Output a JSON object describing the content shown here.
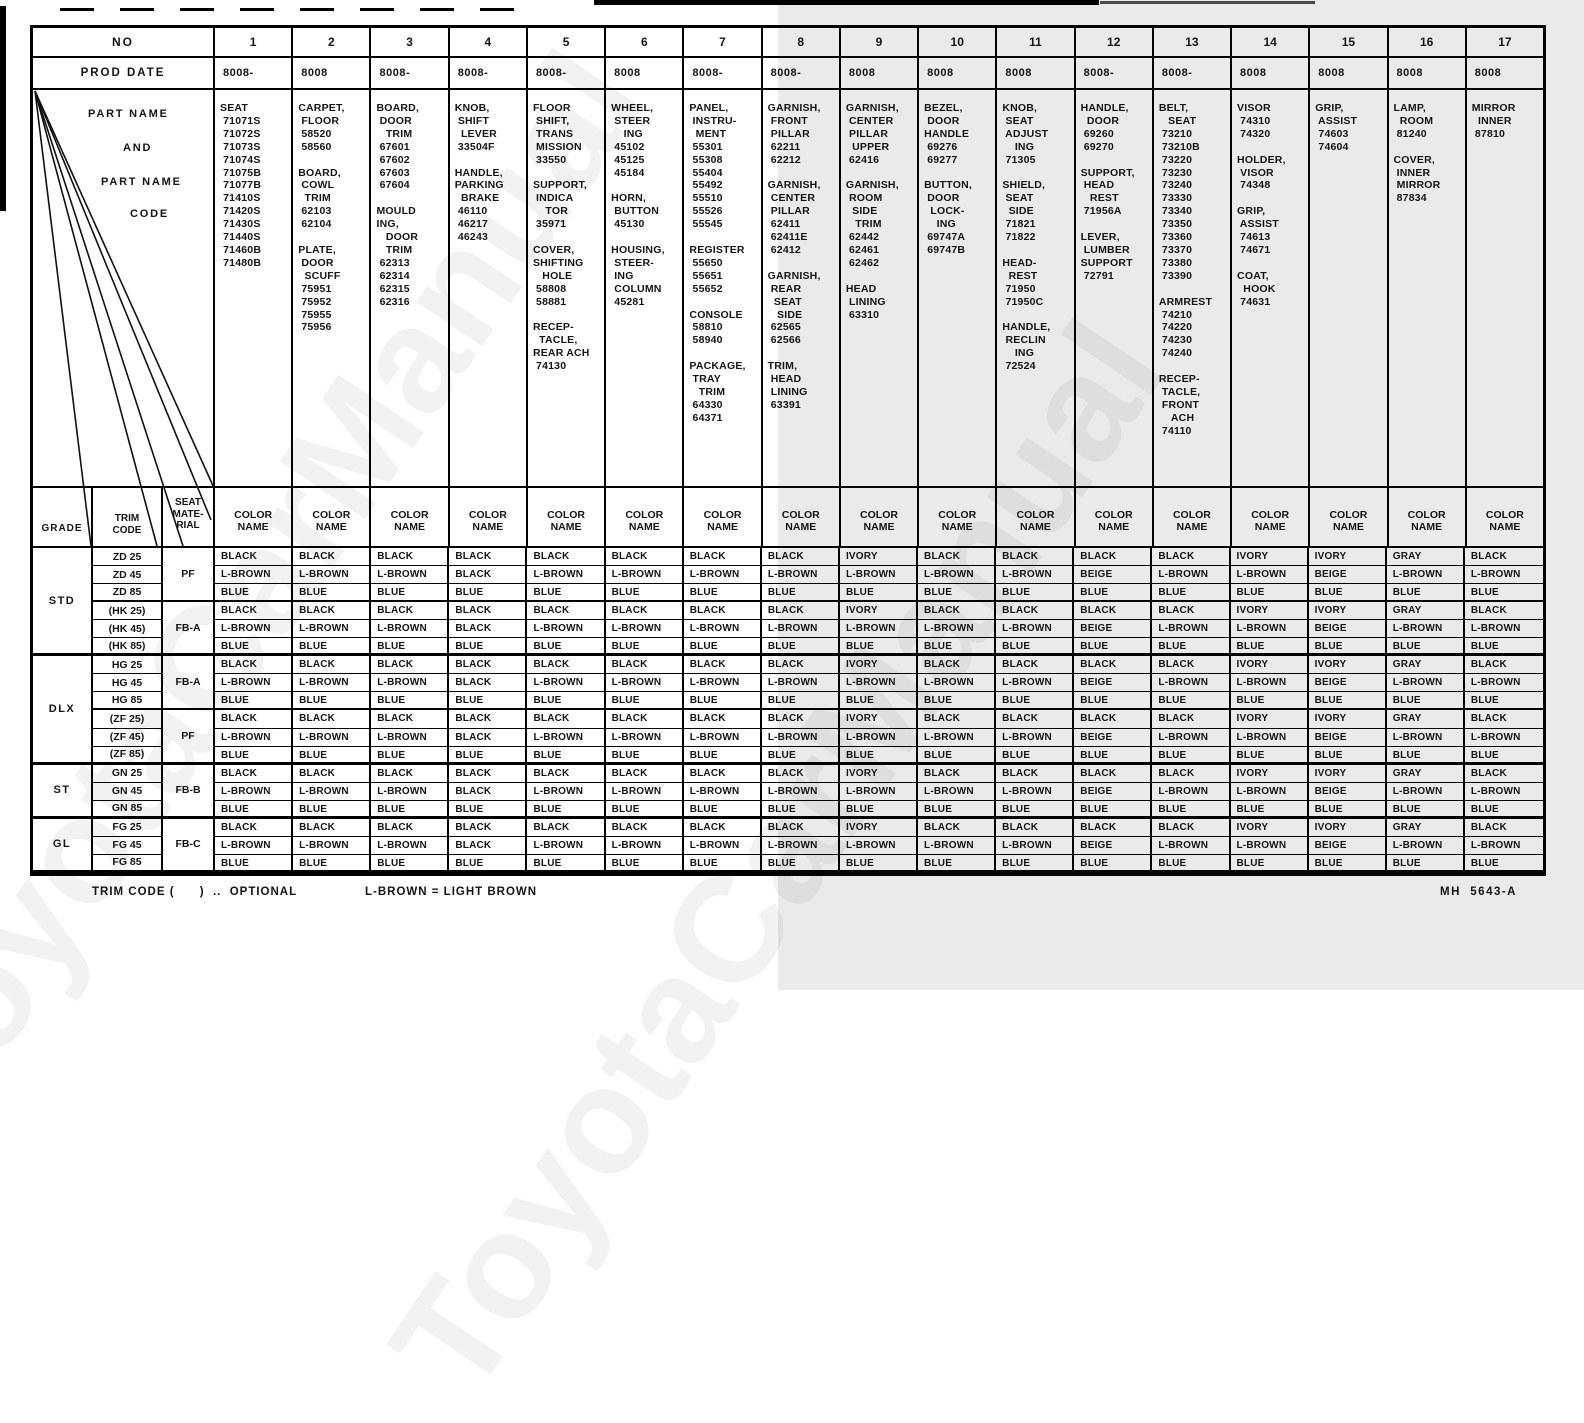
{
  "page": {
    "watermark": "ToyotaCarManual"
  },
  "header": {
    "no_label": "NO",
    "prod_date_label": "PROD DATE",
    "part_name_line1": "PART NAME",
    "part_name_line2": "AND",
    "part_name_line3": "PART NAME",
    "part_name_line4": "CODE",
    "grade_label": "GRADE",
    "trim_code_label": "TRIM\nCODE",
    "seat_material_label": "SEAT\nMATE-\nRIAL",
    "color_name_label": "COLOR\nNAME"
  },
  "columns": [
    {
      "no": "1",
      "prod_date": "8008-",
      "parts": "SEAT\n 71071S\n 71072S\n 71073S\n 71074S\n 71075B\n 71077B\n 71410S\n 71420S\n 71430S\n 71440S\n 71460B\n 71480B"
    },
    {
      "no": "2",
      "prod_date": "8008",
      "parts": "CARPET,\n FLOOR\n 58520\n 58560\n\nBOARD,\n COWL\n  TRIM\n 62103\n 62104\n\nPLATE,\n DOOR\n  SCUFF\n 75951\n 75952\n 75955\n 75956"
    },
    {
      "no": "3",
      "prod_date": "8008-",
      "parts": "BOARD,\n DOOR\n   TRIM\n 67601\n 67602\n 67603\n 67604\n\nMOULD\nING,\n   DOOR\n   TRIM\n 62313\n 62314\n 62315\n 62316"
    },
    {
      "no": "4",
      "prod_date": "8008-",
      "parts": "KNOB,\n SHIFT\n  LEVER\n 33504F\n\nHANDLE,\nPARKING\n  BRAKE\n 46110\n 46217\n 46243"
    },
    {
      "no": "5",
      "prod_date": "8008-",
      "parts": "FLOOR\n SHIFT,\n TRANS\n MISSION\n 33550\n\nSUPPORT,\n INDICA\n    TOR\n 35971\n\nCOVER,\nSHIFTING\n   HOLE\n 58808\n 58881\n\nRECEP-\n  TACLE,\nREAR ACH\n 74130"
    },
    {
      "no": "6",
      "prod_date": "8008",
      "parts": "WHEEL,\n STEER\n    ING\n 45102\n 45125\n 45184\n\nHORN,\n BUTTON\n 45130\n\nHOUSING,\n STEER-\n ING\n COLUMN\n 45281"
    },
    {
      "no": "7",
      "prod_date": "8008-",
      "parts": "PANEL,\n INSTRU-\n  MENT\n 55301\n 55308\n 55404\n 55492\n 55510\n 55526\n 55545\n\nREGISTER\n 55650\n 55651\n 55652\n\nCONSOLE\n 58810\n 58940\n\nPACKAGE,\n TRAY\n   TRIM\n 64330\n 64371"
    },
    {
      "no": "8",
      "prod_date": "8008-",
      "parts": "GARNISH,\n FRONT\n PILLAR\n 62211\n 62212\n\nGARNISH,\n CENTER\n PILLAR\n 62411\n 62411E\n 62412\n\nGARNISH,\n REAR\n  SEAT\n   SIDE\n 62565\n 62566\n\nTRIM,\n HEAD\n LINING\n 63391"
    },
    {
      "no": "9",
      "prod_date": "8008",
      "parts": "GARNISH,\n CENTER\n PILLAR\n  UPPER\n 62416\n\nGARNISH,\n ROOM\n  SIDE\n   TRIM\n 62442\n 62461\n 62462\n\nHEAD\n LINING\n 63310"
    },
    {
      "no": "10",
      "prod_date": "8008",
      "parts": "BEZEL,\n DOOR\nHANDLE\n 69276\n 69277\n\nBUTTON,\n DOOR\n  LOCK-\n    ING\n 69747A\n 69747B"
    },
    {
      "no": "11",
      "prod_date": "8008",
      "parts": "KNOB,\n SEAT\n ADJUST\n    ING\n 71305\n\nSHIELD,\n SEAT\n  SIDE\n 71821\n 71822\n\nHEAD-\n  REST\n 71950\n 71950C\n\nHANDLE,\n RECLIN\n    ING\n 72524"
    },
    {
      "no": "12",
      "prod_date": "8008-",
      "parts": "HANDLE,\n  DOOR\n 69260\n 69270\n\nSUPPORT,\n HEAD\n   REST\n 71956A\n\nLEVER,\n LUMBER\nSUPPORT\n 72791"
    },
    {
      "no": "13",
      "prod_date": "8008-",
      "parts": "BELT,\n   SEAT\n 73210\n 73210B\n 73220\n 73230\n 73240\n 73330\n 73340\n 73350\n 73360\n 73370\n 73380\n 73390\n\nARMREST\n 74210\n 74220\n 74230\n 74240\n\nRECEP-\n TACLE,\n FRONT\n    ACH\n 74110"
    },
    {
      "no": "14",
      "prod_date": "8008",
      "parts": "VISOR\n 74310\n 74320\n\nHOLDER,\n VISOR\n 74348\n\nGRIP,\n ASSIST\n 74613\n 74671\n\nCOAT,\n  HOOK\n 74631"
    },
    {
      "no": "15",
      "prod_date": "8008",
      "parts": "GRIP,\n ASSIST\n 74603\n 74604"
    },
    {
      "no": "16",
      "prod_date": "8008",
      "parts": "LAMP,\n  ROOM\n 81240\n\nCOVER,\n INNER\n MIRROR\n 87834"
    },
    {
      "no": "17",
      "prod_date": "8008",
      "parts": "MIRROR\n  INNER\n 87810"
    }
  ],
  "grade_groups": [
    {
      "grade": "STD",
      "rows": 6
    },
    {
      "grade": "DLX",
      "rows": 6
    },
    {
      "grade": "ST",
      "rows": 3
    },
    {
      "grade": "GL",
      "rows": 3
    }
  ],
  "seat_materials": [
    {
      "label": "PF",
      "rows": 3
    },
    {
      "label": "FB-A",
      "rows": 3
    },
    {
      "label": "FB-A",
      "rows": 3
    },
    {
      "label": "PF",
      "rows": 3
    },
    {
      "label": "FB-B",
      "rows": 3
    },
    {
      "label": "FB-C",
      "rows": 3
    }
  ],
  "rows": [
    {
      "trim": "ZD 25",
      "colors": [
        "BLACK",
        "BLACK",
        "BLACK",
        "BLACK",
        "BLACK",
        "BLACK",
        "BLACK",
        "BLACK",
        "IVORY",
        "BLACK",
        "BLACK",
        "BLACK",
        "BLACK",
        "IVORY",
        "IVORY",
        "GRAY",
        "BLACK"
      ]
    },
    {
      "trim": "ZD 45",
      "colors": [
        "L-BROWN",
        "L-BROWN",
        "L-BROWN",
        "BLACK",
        "L-BROWN",
        "L-BROWN",
        "L-BROWN",
        "L-BROWN",
        "L-BROWN",
        "L-BROWN",
        "L-BROWN",
        "BEIGE",
        "L-BROWN",
        "L-BROWN",
        "BEIGE",
        "L-BROWN",
        "L-BROWN"
      ]
    },
    {
      "trim": "ZD 85",
      "colors": [
        "BLUE",
        "BLUE",
        "BLUE",
        "BLUE",
        "BLUE",
        "BLUE",
        "BLUE",
        "BLUE",
        "BLUE",
        "BLUE",
        "BLUE",
        "BLUE",
        "BLUE",
        "BLUE",
        "BLUE",
        "BLUE",
        "BLUE"
      ]
    },
    {
      "trim": "(HK 25)",
      "colors": [
        "BLACK",
        "BLACK",
        "BLACK",
        "BLACK",
        "BLACK",
        "BLACK",
        "BLACK",
        "BLACK",
        "IVORY",
        "BLACK",
        "BLACK",
        "BLACK",
        "BLACK",
        "IVORY",
        "IVORY",
        "GRAY",
        "BLACK"
      ]
    },
    {
      "trim": "(HK 45)",
      "colors": [
        "L-BROWN",
        "L-BROWN",
        "L-BROWN",
        "BLACK",
        "L-BROWN",
        "L-BROWN",
        "L-BROWN",
        "L-BROWN",
        "L-BROWN",
        "L-BROWN",
        "L-BROWN",
        "BEIGE",
        "L-BROWN",
        "L-BROWN",
        "BEIGE",
        "L-BROWN",
        "L-BROWN"
      ]
    },
    {
      "trim": "(HK 85)",
      "colors": [
        "BLUE",
        "BLUE",
        "BLUE",
        "BLUE",
        "BLUE",
        "BLUE",
        "BLUE",
        "BLUE",
        "BLUE",
        "BLUE",
        "BLUE",
        "BLUE",
        "BLUE",
        "BLUE",
        "BLUE",
        "BLUE",
        "BLUE"
      ]
    },
    {
      "trim": "HG 25",
      "colors": [
        "BLACK",
        "BLACK",
        "BLACK",
        "BLACK",
        "BLACK",
        "BLACK",
        "BLACK",
        "BLACK",
        "IVORY",
        "BLACK",
        "BLACK",
        "BLACK",
        "BLACK",
        "IVORY",
        "IVORY",
        "GRAY",
        "BLACK"
      ]
    },
    {
      "trim": "HG 45",
      "colors": [
        "L-BROWN",
        "L-BROWN",
        "L-BROWN",
        "BLACK",
        "L-BROWN",
        "L-BROWN",
        "L-BROWN",
        "L-BROWN",
        "L-BROWN",
        "L-BROWN",
        "L-BROWN",
        "BEIGE",
        "L-BROWN",
        "L-BROWN",
        "BEIGE",
        "L-BROWN",
        "L-BROWN"
      ]
    },
    {
      "trim": "HG 85",
      "colors": [
        "BLUE",
        "BLUE",
        "BLUE",
        "BLUE",
        "BLUE",
        "BLUE",
        "BLUE",
        "BLUE",
        "BLUE",
        "BLUE",
        "BLUE",
        "BLUE",
        "BLUE",
        "BLUE",
        "BLUE",
        "BLUE",
        "BLUE"
      ]
    },
    {
      "trim": "(ZF 25)",
      "colors": [
        "BLACK",
        "BLACK",
        "BLACK",
        "BLACK",
        "BLACK",
        "BLACK",
        "BLACK",
        "BLACK",
        "IVORY",
        "BLACK",
        "BLACK",
        "BLACK",
        "BLACK",
        "IVORY",
        "IVORY",
        "GRAY",
        "BLACK"
      ]
    },
    {
      "trim": "(ZF 45)",
      "colors": [
        "L-BROWN",
        "L-BROWN",
        "L-BROWN",
        "BLACK",
        "L-BROWN",
        "L-BROWN",
        "L-BROWN",
        "L-BROWN",
        "L-BROWN",
        "L-BROWN",
        "L-BROWN",
        "BEIGE",
        "L-BROWN",
        "L-BROWN",
        "BEIGE",
        "L-BROWN",
        "L-BROWN"
      ]
    },
    {
      "trim": "(ZF 85)",
      "colors": [
        "BLUE",
        "BLUE",
        "BLUE",
        "BLUE",
        "BLUE",
        "BLUE",
        "BLUE",
        "BLUE",
        "BLUE",
        "BLUE",
        "BLUE",
        "BLUE",
        "BLUE",
        "BLUE",
        "BLUE",
        "BLUE",
        "BLUE"
      ]
    },
    {
      "trim": "GN 25",
      "colors": [
        "BLACK",
        "BLACK",
        "BLACK",
        "BLACK",
        "BLACK",
        "BLACK",
        "BLACK",
        "BLACK",
        "IVORY",
        "BLACK",
        "BLACK",
        "BLACK",
        "BLACK",
        "IVORY",
        "IVORY",
        "GRAY",
        "BLACK"
      ]
    },
    {
      "trim": "GN 45",
      "colors": [
        "L-BROWN",
        "L-BROWN",
        "L-BROWN",
        "BLACK",
        "L-BROWN",
        "L-BROWN",
        "L-BROWN",
        "L-BROWN",
        "L-BROWN",
        "L-BROWN",
        "L-BROWN",
        "BEIGE",
        "L-BROWN",
        "L-BROWN",
        "BEIGE",
        "L-BROWN",
        "L-BROWN"
      ]
    },
    {
      "trim": "GN 85",
      "colors": [
        "BLUE",
        "BLUE",
        "BLUE",
        "BLUE",
        "BLUE",
        "BLUE",
        "BLUE",
        "BLUE",
        "BLUE",
        "BLUE",
        "BLUE",
        "BLUE",
        "BLUE",
        "BLUE",
        "BLUE",
        "BLUE",
        "BLUE"
      ]
    },
    {
      "trim": "FG 25",
      "colors": [
        "BLACK",
        "BLACK",
        "BLACK",
        "BLACK",
        "BLACK",
        "BLACK",
        "BLACK",
        "BLACK",
        "IVORY",
        "BLACK",
        "BLACK",
        "BLACK",
        "BLACK",
        "IVORY",
        "IVORY",
        "GRAY",
        "BLACK"
      ]
    },
    {
      "trim": "FG 45",
      "colors": [
        "L-BROWN",
        "L-BROWN",
        "L-BROWN",
        "BLACK",
        "L-BROWN",
        "L-BROWN",
        "L-BROWN",
        "L-BROWN",
        "L-BROWN",
        "L-BROWN",
        "L-BROWN",
        "BEIGE",
        "L-BROWN",
        "L-BROWN",
        "BEIGE",
        "L-BROWN",
        "L-BROWN"
      ]
    },
    {
      "trim": "FG 85",
      "colors": [
        "BLUE",
        "BLUE",
        "BLUE",
        "BLUE",
        "BLUE",
        "BLUE",
        "BLUE",
        "BLUE",
        "BLUE",
        "BLUE",
        "BLUE",
        "BLUE",
        "BLUE",
        "BLUE",
        "BLUE",
        "BLUE",
        "BLUE"
      ]
    }
  ],
  "footer": {
    "note1": "TRIM CODE (      )  ..  OPTIONAL",
    "note2": "L-BROWN = LIGHT BROWN",
    "doc_number": "MH  5643-A"
  }
}
